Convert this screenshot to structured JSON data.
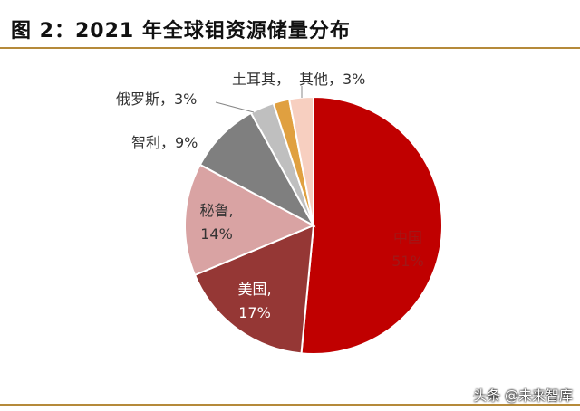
{
  "title": "图 2：2021 年全球钼资源储量分布",
  "watermark": "头条 @未来智库",
  "chart_data": {
    "type": "pie",
    "title": "图 2：2021 年全球钼资源储量分布",
    "slices": [
      {
        "name": "中国",
        "value": 51,
        "label": "51%",
        "color": "#c00000",
        "label_color": "#a01818"
      },
      {
        "name": "美国",
        "value": 17,
        "label": "17%",
        "color": "#953735",
        "label_color": "#ffffff"
      },
      {
        "name": "秘鲁",
        "value": 14,
        "label": "14%",
        "color": "#d9a3a3",
        "label_color": "#333333"
      },
      {
        "name": "智利",
        "value": 9,
        "label": "9%",
        "color": "#7f7f7f",
        "label_color": "#333333"
      },
      {
        "name": "俄罗斯",
        "value": 3,
        "label": "3%",
        "color": "#bfbfbf",
        "label_color": "#333333"
      },
      {
        "name": "土耳其",
        "value": 2,
        "label": "",
        "color": "#e0a040",
        "label_color": "#333333"
      },
      {
        "name": "其他",
        "value": 3,
        "label": "3%",
        "color": "#f7cfc0",
        "label_color": "#333333"
      }
    ]
  }
}
